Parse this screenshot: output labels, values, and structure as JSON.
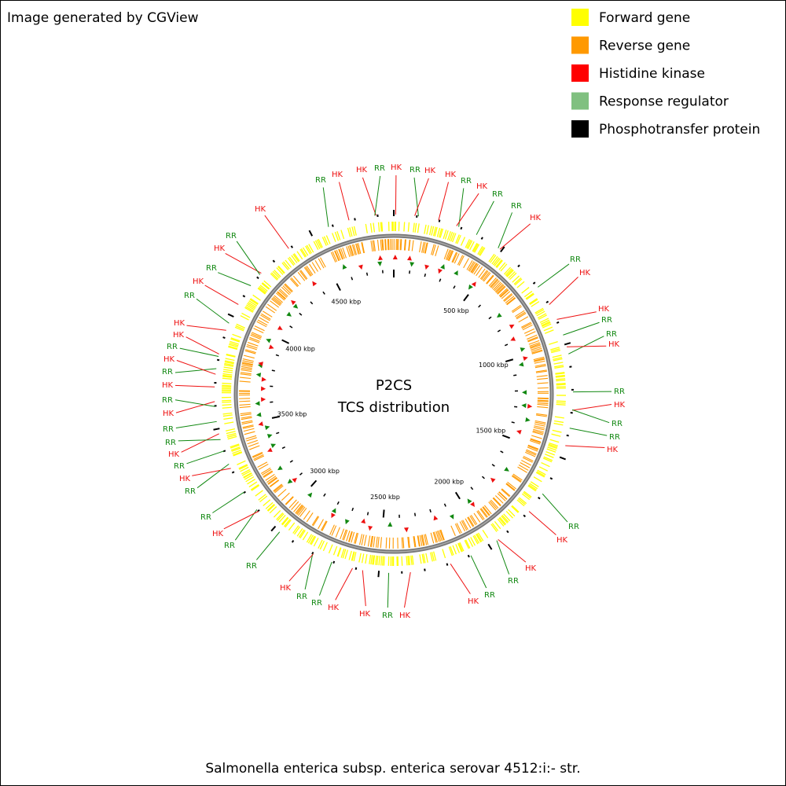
{
  "header": {
    "title": "Image generated by CGView"
  },
  "legend": [
    {
      "name": "Forward gene",
      "color": "#ffff00"
    },
    {
      "name": "Reverse gene",
      "color": "#ff9900"
    },
    {
      "name": "Histidine kinase",
      "color": "#ff0000"
    },
    {
      "name": "Response regulator",
      "color": "#80c080"
    },
    {
      "name": "Phosphotransfer protein",
      "color": "#000000"
    }
  ],
  "center": {
    "title": "P2CS",
    "subtitle": "TCS distribution"
  },
  "ruler_labels": [
    "500 kbp",
    "1000 kbp",
    "1500 kbp",
    "2000 kbp",
    "2500 kbp",
    "3000 kbp",
    "3500 kbp",
    "4000 kbp",
    "4500 kbp"
  ],
  "callouts": [
    {
      "label": "RR",
      "color": "#118811"
    },
    {
      "label": "HK",
      "color": "#ee1111"
    },
    {
      "label": "HK",
      "color": "#ee1111"
    },
    {
      "label": "RR",
      "color": "#118811"
    },
    {
      "label": "HK",
      "color": "#ee1111"
    },
    {
      "label": "RR",
      "color": "#118811"
    },
    {
      "label": "HK",
      "color": "#ee1111"
    },
    {
      "label": "HK",
      "color": "#ee1111"
    },
    {
      "label": "RR",
      "color": "#118811"
    },
    {
      "label": "HK",
      "color": "#ee1111"
    },
    {
      "label": "RR",
      "color": "#118811"
    },
    {
      "label": "RR",
      "color": "#118811"
    },
    {
      "label": "HK",
      "color": "#ee1111"
    },
    {
      "label": "RR",
      "color": "#118811"
    },
    {
      "label": "HK",
      "color": "#ee1111"
    },
    {
      "label": "HK",
      "color": "#ee1111"
    },
    {
      "label": "RR",
      "color": "#118811"
    },
    {
      "label": "RR",
      "color": "#118811"
    },
    {
      "label": "HK",
      "color": "#ee1111"
    },
    {
      "label": "RR",
      "color": "#118811"
    },
    {
      "label": "HK",
      "color": "#ee1111"
    },
    {
      "label": "RR",
      "color": "#118811"
    },
    {
      "label": "RR",
      "color": "#118811"
    },
    {
      "label": "HK",
      "color": "#ee1111"
    },
    {
      "label": "RR",
      "color": "#118811"
    },
    {
      "label": "HK",
      "color": "#ee1111"
    },
    {
      "label": "HK",
      "color": "#ee1111"
    },
    {
      "label": "RR",
      "color": "#118811"
    },
    {
      "label": "RR",
      "color": "#118811"
    },
    {
      "label": "HK",
      "color": "#ee1111"
    },
    {
      "label": "HK",
      "color": "#ee1111"
    },
    {
      "label": "RR",
      "color": "#118811"
    },
    {
      "label": "HK",
      "color": "#ee1111"
    },
    {
      "label": "HK",
      "color": "#ee1111"
    },
    {
      "label": "RR",
      "color": "#118811"
    },
    {
      "label": "RR",
      "color": "#118811"
    },
    {
      "label": "HK",
      "color": "#ee1111"
    },
    {
      "label": "RR",
      "color": "#118811"
    },
    {
      "label": "RR",
      "color": "#118811"
    },
    {
      "label": "HK",
      "color": "#ee1111"
    },
    {
      "label": "RR",
      "color": "#118811"
    },
    {
      "label": "RR",
      "color": "#118811"
    },
    {
      "label": "HK",
      "color": "#ee1111"
    },
    {
      "label": "RR",
      "color": "#118811"
    },
    {
      "label": "HK",
      "color": "#ee1111"
    },
    {
      "label": "RR",
      "color": "#118811"
    },
    {
      "label": "RR",
      "color": "#118811"
    },
    {
      "label": "HK",
      "color": "#ee1111"
    },
    {
      "label": "RR",
      "color": "#118811"
    },
    {
      "label": "HK",
      "color": "#ee1111"
    },
    {
      "label": "RR",
      "color": "#118811"
    },
    {
      "label": "HK",
      "color": "#ee1111"
    },
    {
      "label": "RR",
      "color": "#118811"
    },
    {
      "label": "HK",
      "color": "#ee1111"
    },
    {
      "label": "RR",
      "color": "#118811"
    },
    {
      "label": "HK",
      "color": "#ee1111"
    },
    {
      "label": "HK",
      "color": "#ee1111"
    },
    {
      "label": "RR",
      "color": "#118811"
    },
    {
      "label": "HK",
      "color": "#ee1111"
    },
    {
      "label": "RR",
      "color": "#118811"
    },
    {
      "label": "HK",
      "color": "#ee1111"
    }
  ],
  "footer": {
    "text": "Salmonella enterica subsp. enterica serovar 4512:i:- str."
  }
}
